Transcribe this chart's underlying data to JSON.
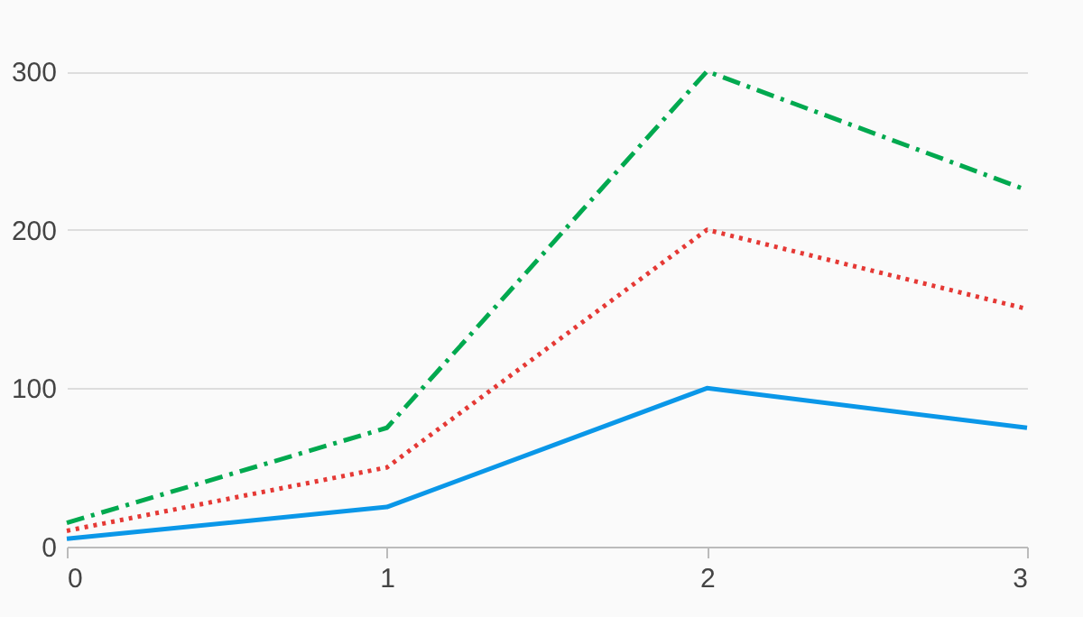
{
  "chart_data": {
    "type": "line",
    "x": [
      0,
      1,
      2,
      3
    ],
    "xlim": [
      0,
      3
    ],
    "xticks": [
      0,
      1,
      2,
      3
    ],
    "ylim": [
      0,
      345
    ],
    "yticks": [
      0,
      100,
      200,
      300
    ],
    "grid": "y",
    "marker": "none",
    "series": [
      {
        "color": "#0a97e8",
        "values": [
          5,
          25,
          100,
          75
        ],
        "line_style": "solid"
      },
      {
        "color": "#e53935",
        "values": [
          10,
          50,
          200,
          150
        ],
        "line_style": "dotted"
      },
      {
        "color": "#00a94f",
        "values": [
          15,
          75,
          300,
          225
        ],
        "line_style": "dashdot"
      }
    ]
  }
}
